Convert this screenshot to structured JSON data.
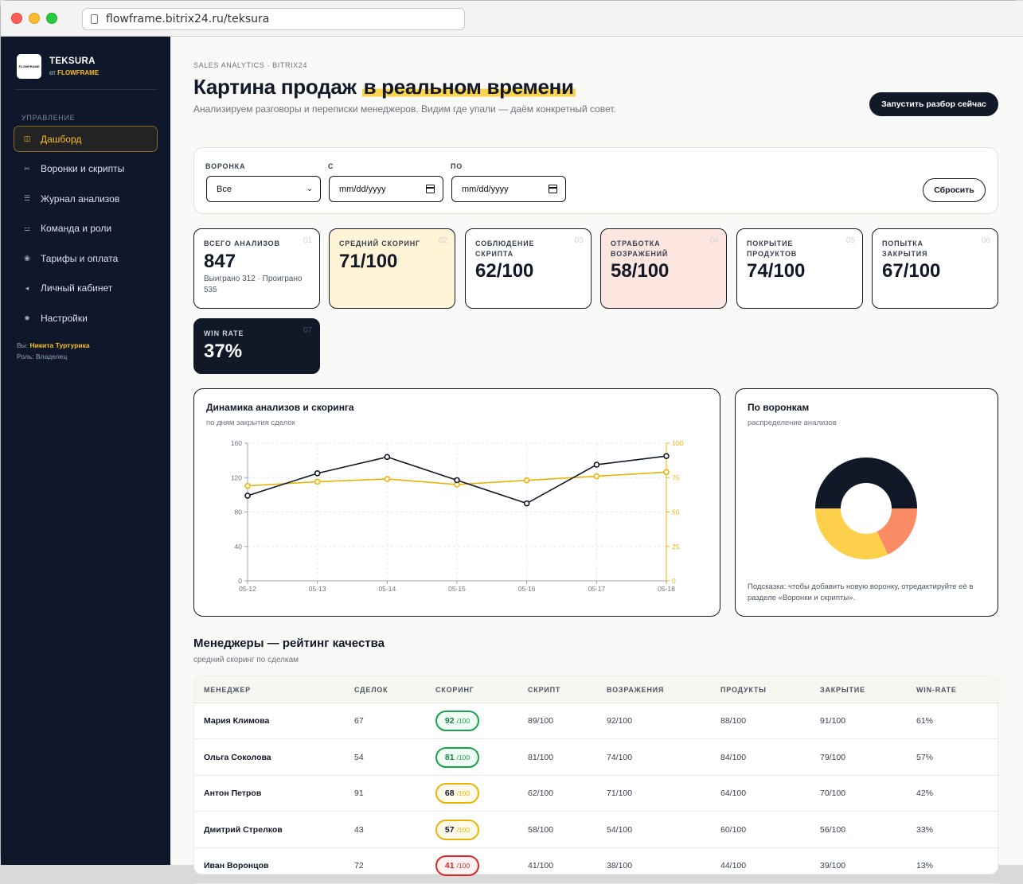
{
  "browser": {
    "url": "flowframe.bitrix24.ru/teksura"
  },
  "sidebar": {
    "brand_name": "TEKSURA",
    "brand_from": "от",
    "brand_org": "FLOWFRAME",
    "logo_text": "FLOWFRAME",
    "section": "УПРАВЛЕНИЕ",
    "items": [
      {
        "label": "Дашборд",
        "icon": "grid-icon",
        "glyph": "◫",
        "active": true
      },
      {
        "label": "Воронки и скрипты",
        "icon": "scissors-icon",
        "glyph": "✂",
        "active": false
      },
      {
        "label": "Журнал анализов",
        "icon": "list-icon",
        "glyph": "☰",
        "active": false
      },
      {
        "label": "Команда и роли",
        "icon": "team-icon",
        "glyph": "⚍",
        "active": false
      },
      {
        "label": "Тарифы и оплата",
        "icon": "coin-icon",
        "glyph": "◉",
        "active": false
      },
      {
        "label": "Личный кабинет",
        "icon": "user-icon",
        "glyph": "◂",
        "active": false
      },
      {
        "label": "Настройки",
        "icon": "gear-icon",
        "glyph": "✹",
        "active": false
      }
    ],
    "user_prefix": "Вы:",
    "user_name": "Никита Туртурика",
    "role": "Роль: Владелец"
  },
  "header": {
    "kicker": "SALES ANALYTICS · BITRIX24",
    "title_plain": "Картина продаж",
    "title_highlight": "в реальном времени",
    "subtitle": "Анализируем разговоры и переписки менеджеров. Видим где упали — даём конкретный совет.",
    "cta": "Запустить разбор сейчас"
  },
  "filters": {
    "funnel_label": "ВОРОНКА",
    "funnel_value": "Все",
    "from_label": "С",
    "from_placeholder": "mm/dd/yyyy",
    "to_label": "ПО",
    "to_placeholder": "mm/dd/yyyy",
    "reset": "Сбросить"
  },
  "stats": [
    {
      "num": "01",
      "label": "ВСЕГО АНАЛИЗОВ",
      "value": "847",
      "sub": "Выиграно 312 · Проиграно 535",
      "style": "white"
    },
    {
      "num": "02",
      "label": "СРЕДНИЙ СКОРИНГ",
      "value": "71/100",
      "sub": "",
      "style": "yellow"
    },
    {
      "num": "03",
      "label": "СОБЛЮДЕНИЕ СКРИПТА",
      "value": "62/100",
      "sub": "",
      "style": "white"
    },
    {
      "num": "04",
      "label": "ОТРАБОТКА ВОЗРАЖЕНИЙ",
      "value": "58/100",
      "sub": "",
      "style": "pink"
    },
    {
      "num": "05",
      "label": "ПОКРЫТИЕ ПРОДУКТОВ",
      "value": "74/100",
      "sub": "",
      "style": "white"
    },
    {
      "num": "06",
      "label": "ПОПЫТКА ЗАКРЫТИЯ",
      "value": "67/100",
      "sub": "",
      "style": "white"
    },
    {
      "num": "07",
      "label": "WIN RATE",
      "value": "37%",
      "sub": "",
      "style": "dark"
    }
  ],
  "dynamics": {
    "title": "Динамика анализов и скоринга",
    "subtitle": "по дням закрытия сделок"
  },
  "funnels": {
    "title": "По воронкам",
    "subtitle": "распределение анализов",
    "hint": "Подсказка: чтобы добавить новую воронку, отредактируйте её в разделе «Воронки и скрипты»."
  },
  "chart_data": [
    {
      "type": "line",
      "x": [
        "05-12",
        "05-13",
        "05-14",
        "05-15",
        "05-16",
        "05-17",
        "05-18"
      ],
      "series": [
        {
          "axis": "left",
          "color": "#111827",
          "values": [
            99,
            125,
            144,
            117,
            90,
            135,
            145
          ]
        },
        {
          "axis": "right",
          "color": "#eab308",
          "values": [
            69,
            72,
            74,
            70,
            73,
            76,
            79
          ]
        }
      ],
      "ylim_left": [
        0,
        160
      ],
      "yticks_left": [
        0,
        40,
        80,
        120,
        160
      ],
      "ylim_right": [
        0,
        100
      ],
      "yticks_right": [
        0,
        25,
        50,
        75,
        100
      ],
      "grid": true
    },
    {
      "type": "pie",
      "donut": true,
      "slices": [
        {
          "value": 50,
          "color": "#111827"
        },
        {
          "value": 18,
          "color": "#f98b65"
        },
        {
          "value": 32,
          "color": "#fcd04b"
        }
      ]
    }
  ],
  "managers": {
    "title": "Менеджеры — рейтинг качества",
    "subtitle": "средний скоринг по сделкам",
    "columns": [
      "МЕНЕДЖЕР",
      "СДЕЛОК",
      "СКОРИНГ",
      "СКРИПТ",
      "ВОЗРАЖЕНИЯ",
      "ПРОДУКТЫ",
      "ЗАКРЫТИЕ",
      "WIN-RATE"
    ],
    "score_suffix": "/100",
    "rows": [
      {
        "name": "Мария Климова",
        "deals": "67",
        "score": "92",
        "level": "good",
        "script": "89/100",
        "objections": "92/100",
        "products": "88/100",
        "closing": "91/100",
        "winrate": "61%"
      },
      {
        "name": "Ольга Соколова",
        "deals": "54",
        "score": "81",
        "level": "good",
        "script": "81/100",
        "objections": "74/100",
        "products": "84/100",
        "closing": "79/100",
        "winrate": "57%"
      },
      {
        "name": "Антон Петров",
        "deals": "91",
        "score": "68",
        "level": "mid",
        "script": "62/100",
        "objections": "71/100",
        "products": "64/100",
        "closing": "70/100",
        "winrate": "42%"
      },
      {
        "name": "Дмитрий Стрелков",
        "deals": "43",
        "score": "57",
        "level": "mid",
        "script": "58/100",
        "objections": "54/100",
        "products": "60/100",
        "closing": "56/100",
        "winrate": "33%"
      },
      {
        "name": "Иван Воронцов",
        "deals": "72",
        "score": "41",
        "level": "bad",
        "script": "41/100",
        "objections": "38/100",
        "products": "44/100",
        "closing": "39/100",
        "winrate": "13%"
      }
    ]
  },
  "colors": {
    "accent": "#fbbf24",
    "dark": "#111827",
    "good": "#16a34a",
    "mid": "#eab308",
    "bad": "#dc2626"
  }
}
